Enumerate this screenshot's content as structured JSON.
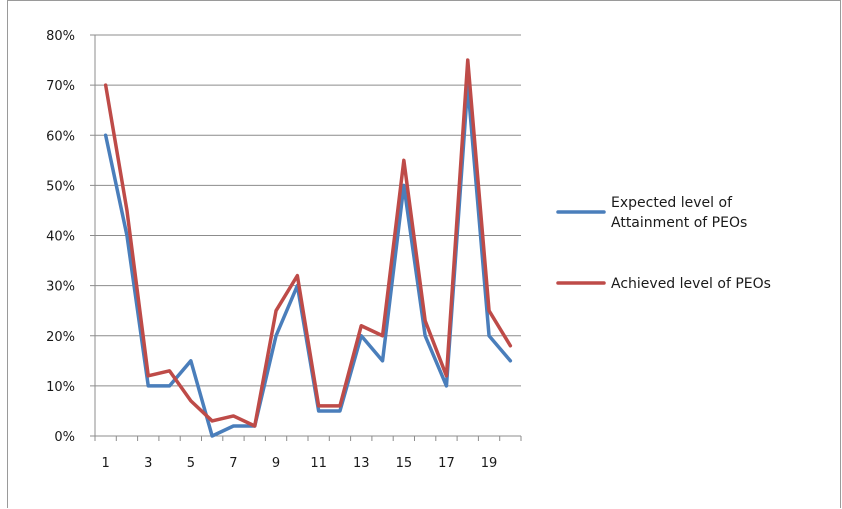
{
  "chart_data": {
    "type": "line",
    "x": [
      1,
      2,
      3,
      4,
      5,
      6,
      7,
      8,
      9,
      10,
      11,
      12,
      13,
      14,
      15,
      16,
      17,
      18,
      19,
      20
    ],
    "x_tick_labels": [
      "1",
      "3",
      "5",
      "7",
      "9",
      "11",
      "13",
      "15",
      "17",
      "19"
    ],
    "y_tick_labels": [
      "0%",
      "10%",
      "20%",
      "30%",
      "40%",
      "50%",
      "60%",
      "70%",
      "80%"
    ],
    "ylim": [
      0,
      0.8
    ],
    "y_format": "percent",
    "grid": "horizontal",
    "legend_position": "right",
    "series": [
      {
        "name": "Expected level of Attainment of PEOs",
        "legend_lines": [
          "Expected level of",
          "Attainment of PEOs"
        ],
        "color": "#4a7ebb",
        "values": [
          0.6,
          0.4,
          0.1,
          0.1,
          0.15,
          0.0,
          0.02,
          0.02,
          0.2,
          0.3,
          0.05,
          0.05,
          0.2,
          0.15,
          0.5,
          0.2,
          0.1,
          0.7,
          0.2,
          0.15
        ]
      },
      {
        "name": "Achieved level of PEOs",
        "legend_lines": [
          "Achieved level of PEOs"
        ],
        "color": "#be4b48",
        "values": [
          0.7,
          0.45,
          0.12,
          0.13,
          0.07,
          0.03,
          0.04,
          0.02,
          0.25,
          0.32,
          0.06,
          0.06,
          0.22,
          0.2,
          0.55,
          0.23,
          0.12,
          0.75,
          0.25,
          0.18
        ]
      }
    ]
  }
}
